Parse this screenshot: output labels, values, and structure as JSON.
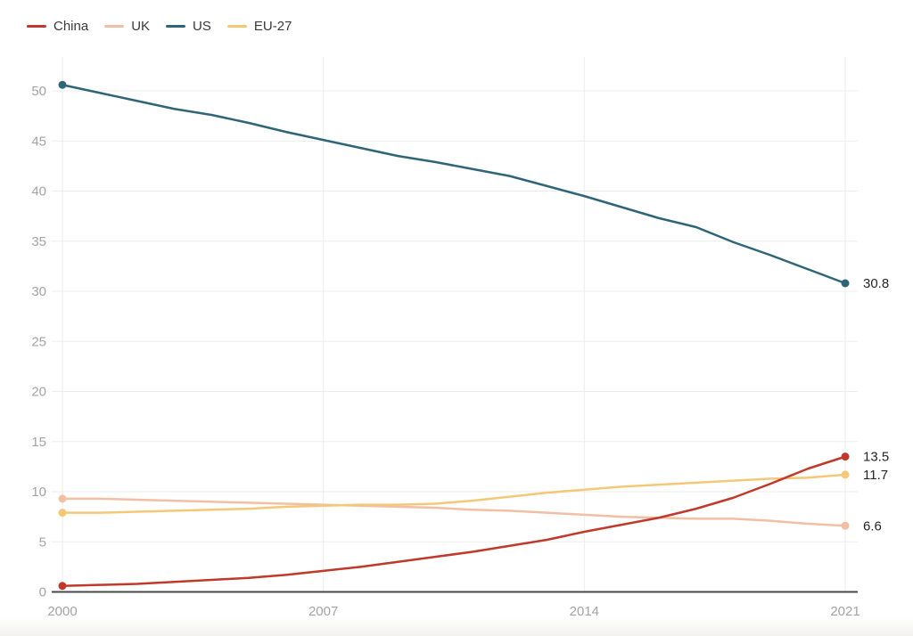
{
  "page": {
    "background": "#ffffff"
  },
  "style": {
    "grid_color": "#ededed",
    "axis_color": "#4a4a4a",
    "tick_label_color": "#a3a3a3",
    "end_label_color": "#262626",
    "legend_label_color": "#3a3a3a"
  },
  "chart_data": {
    "type": "line",
    "title": "",
    "xlabel": "",
    "ylabel": "",
    "x": [
      2000,
      2001,
      2002,
      2003,
      2004,
      2005,
      2006,
      2007,
      2008,
      2009,
      2010,
      2011,
      2012,
      2013,
      2014,
      2015,
      2016,
      2017,
      2018,
      2019,
      2020,
      2021
    ],
    "series": [
      {
        "name": "China",
        "color": "#c0392b",
        "end_label": "13.5",
        "values": [
          0.6,
          0.7,
          0.8,
          1.0,
          1.2,
          1.4,
          1.7,
          2.1,
          2.5,
          3.0,
          3.5,
          4.0,
          4.6,
          5.2,
          6.0,
          6.7,
          7.4,
          8.3,
          9.4,
          10.8,
          12.3,
          13.5
        ]
      },
      {
        "name": "UK",
        "color": "#f2bfa4",
        "end_label": "6.6",
        "values": [
          9.3,
          9.3,
          9.2,
          9.1,
          9.0,
          8.9,
          8.8,
          8.7,
          8.6,
          8.5,
          8.4,
          8.2,
          8.1,
          7.9,
          7.7,
          7.5,
          7.4,
          7.3,
          7.3,
          7.1,
          6.8,
          6.6
        ]
      },
      {
        "name": "US",
        "color": "#2f6579",
        "end_label": "30.8",
        "values": [
          50.6,
          49.8,
          49.0,
          48.2,
          47.6,
          46.8,
          45.9,
          45.1,
          44.3,
          43.5,
          42.9,
          42.2,
          41.5,
          40.5,
          39.5,
          38.4,
          37.3,
          36.4,
          34.9,
          33.6,
          32.2,
          30.8
        ]
      },
      {
        "name": "EU-27",
        "color": "#f5c878",
        "end_label": "11.7",
        "values": [
          7.9,
          7.9,
          8.0,
          8.1,
          8.2,
          8.3,
          8.5,
          8.6,
          8.7,
          8.7,
          8.8,
          9.1,
          9.5,
          9.9,
          10.2,
          10.5,
          10.7,
          10.9,
          11.1,
          11.3,
          11.4,
          11.7
        ]
      }
    ],
    "draw_order": [
      2,
      1,
      3,
      0
    ],
    "x_ticks": [
      2000,
      2007,
      2014,
      2021
    ],
    "y_ticks": [
      0,
      5,
      10,
      15,
      20,
      25,
      30,
      35,
      40,
      45,
      50
    ],
    "xlim": [
      2000,
      2021
    ],
    "ylim": [
      0,
      50
    ],
    "grid": true,
    "legend_position": "top-left"
  }
}
